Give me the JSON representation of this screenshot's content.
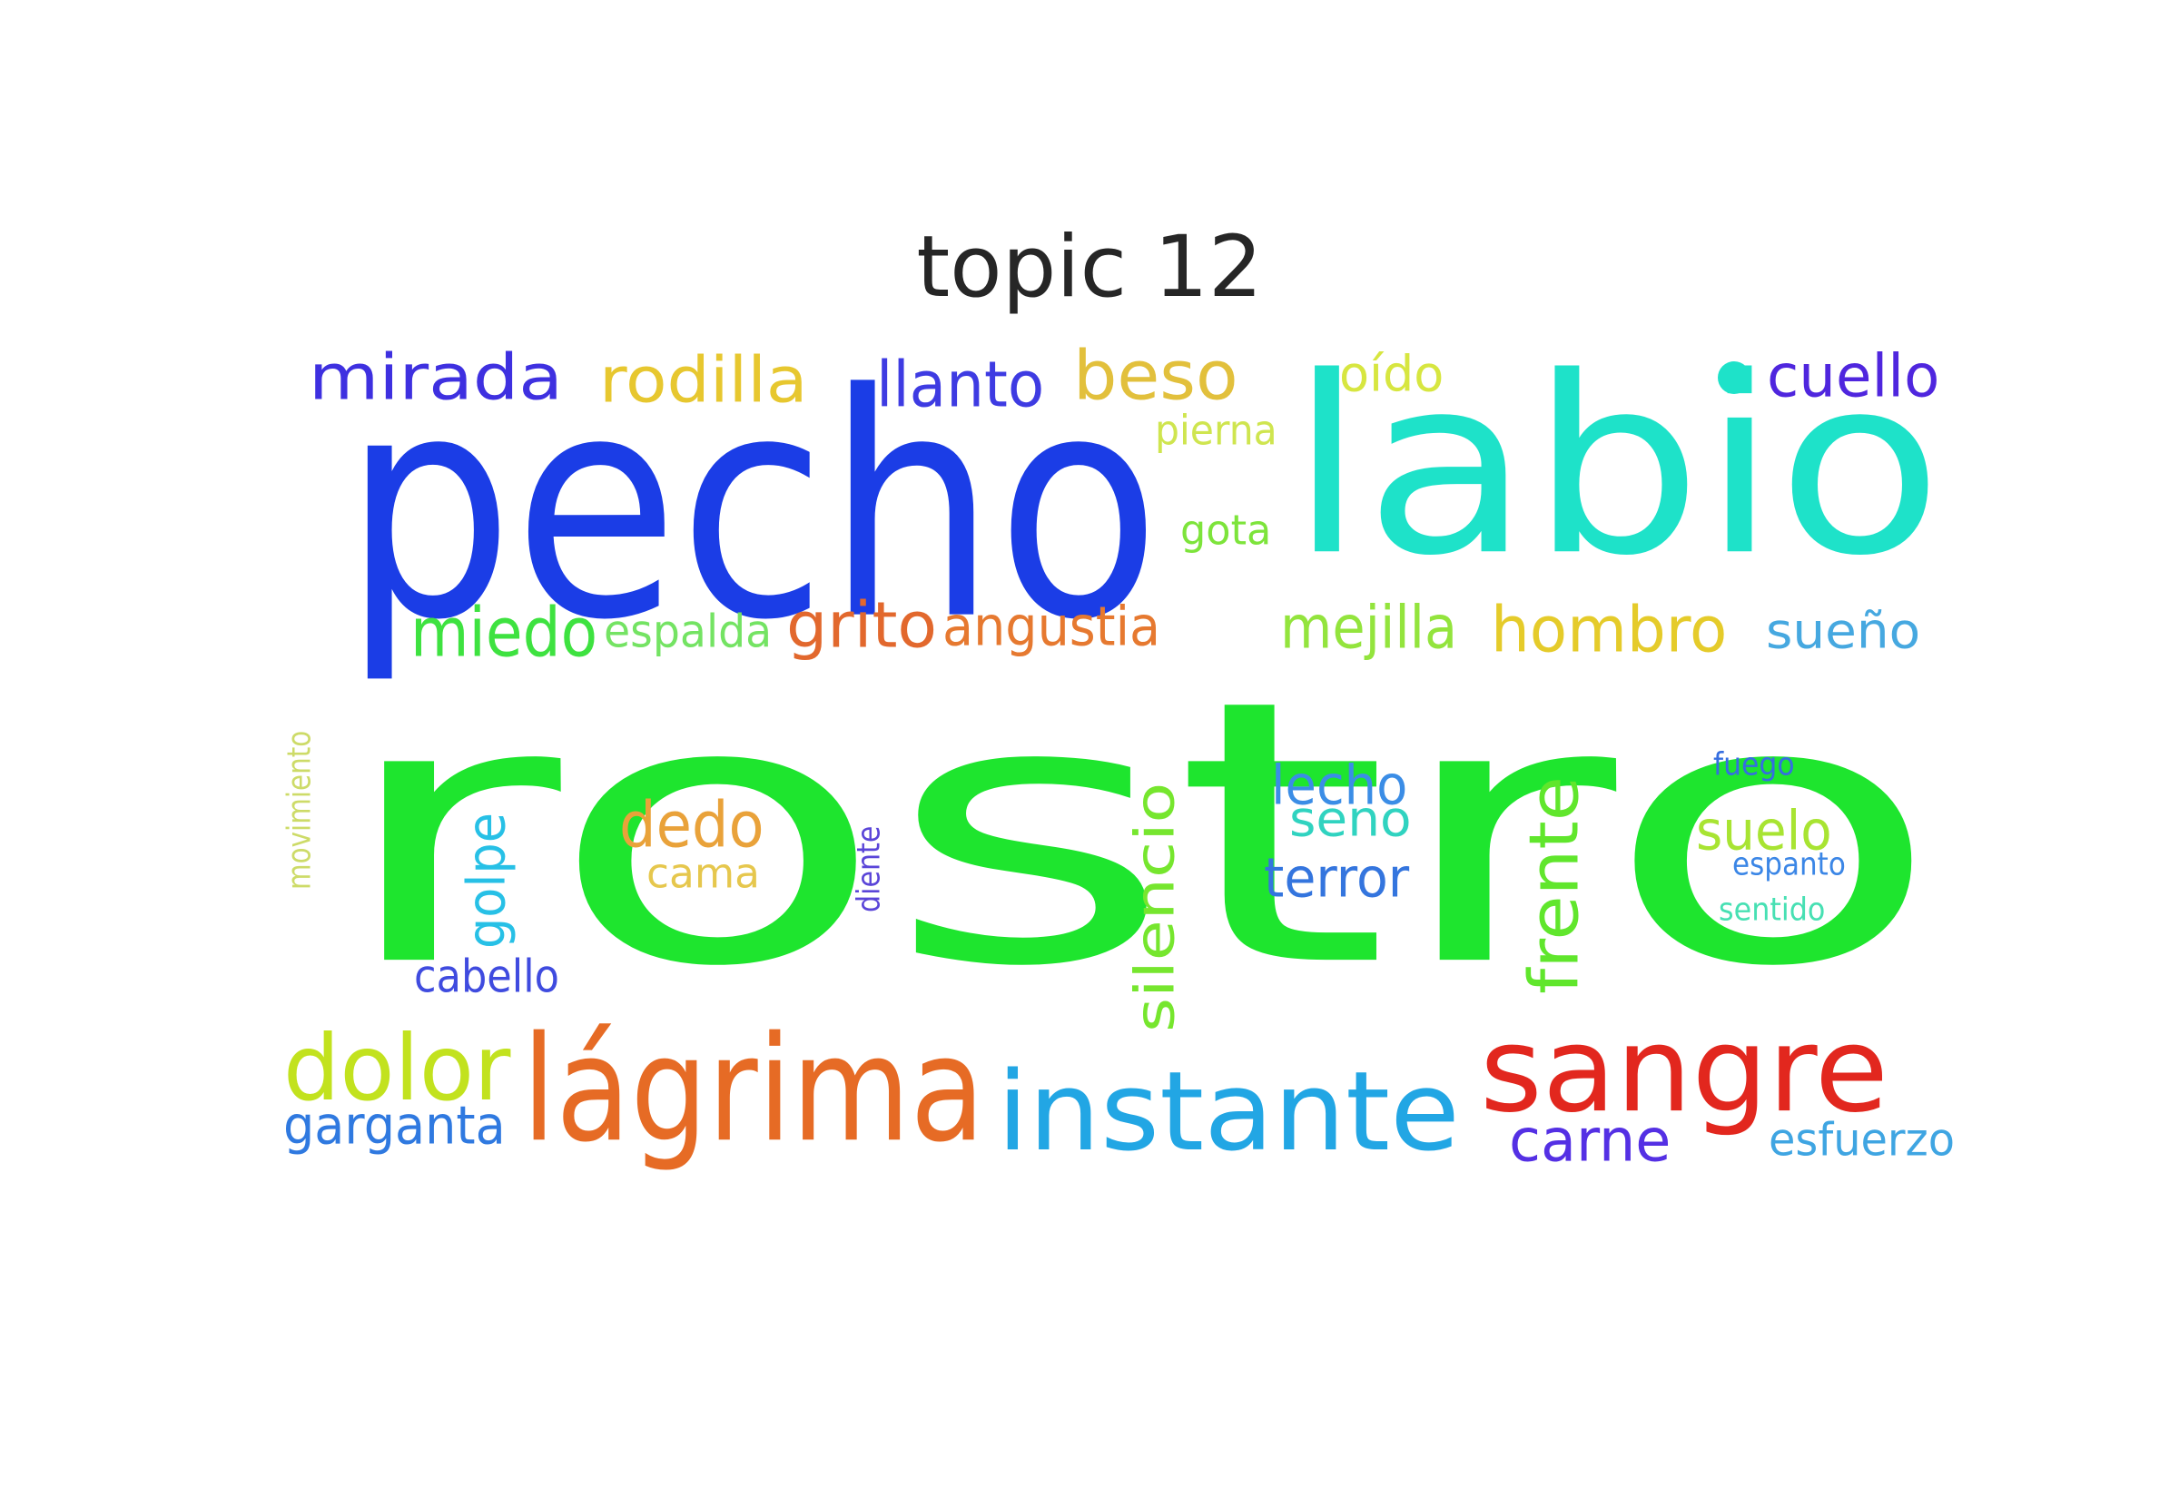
{
  "title": "topic 12",
  "words": [
    {
      "text": "rostro",
      "color": "#1ee52e"
    },
    {
      "text": "pecho",
      "color": "#1b3de6"
    },
    {
      "text": "labio",
      "color": "#1ee2c9"
    },
    {
      "text": "lágrima",
      "color": "#e66b25"
    },
    {
      "text": "instante",
      "color": "#22a6e4"
    },
    {
      "text": "sangre",
      "color": "#e2271e"
    },
    {
      "text": "dolor",
      "color": "#c2e21e"
    },
    {
      "text": "mirada",
      "color": "#3e30e0"
    },
    {
      "text": "rodilla",
      "color": "#e7c72f"
    },
    {
      "text": "llanto",
      "color": "#3e3be2"
    },
    {
      "text": "beso",
      "color": "#e2c03c"
    },
    {
      "text": "oído",
      "color": "#d7e640"
    },
    {
      "text": "cuello",
      "color": "#4f26de"
    },
    {
      "text": "pierna",
      "color": "#cfe54f"
    },
    {
      "text": "gota",
      "color": "#7de43b"
    },
    {
      "text": "miedo",
      "color": "#3ee240"
    },
    {
      "text": "espalda",
      "color": "#74e363"
    },
    {
      "text": "grito",
      "color": "#e2682d"
    },
    {
      "text": "angustia",
      "color": "#e67930"
    },
    {
      "text": "mejilla",
      "color": "#93e43d"
    },
    {
      "text": "hombro",
      "color": "#e5cb2a"
    },
    {
      "text": "sueño",
      "color": "#46a8e0"
    },
    {
      "text": "movimiento",
      "color": "#cddb68"
    },
    {
      "text": "golpe",
      "color": "#27c0e6"
    },
    {
      "text": "dedo",
      "color": "#e9a23a"
    },
    {
      "text": "cama",
      "color": "#e6c74d"
    },
    {
      "text": "diente",
      "color": "#5a45d8"
    },
    {
      "text": "silencio",
      "color": "#76e62e"
    },
    {
      "text": "lecho",
      "color": "#3b8de6"
    },
    {
      "text": "seno",
      "color": "#30d3c0"
    },
    {
      "text": "terror",
      "color": "#3475de"
    },
    {
      "text": "frente",
      "color": "#60e62c"
    },
    {
      "text": "fuego",
      "color": "#356ee0"
    },
    {
      "text": "suelo",
      "color": "#a8e432"
    },
    {
      "text": "espanto",
      "color": "#3b86e6"
    },
    {
      "text": "sentido",
      "color": "#47e0b3"
    },
    {
      "text": "cabello",
      "color": "#3f4bdf"
    },
    {
      "text": "garganta",
      "color": "#2f79e0"
    },
    {
      "text": "carne",
      "color": "#5430e4"
    },
    {
      "text": "esfuerzo",
      "color": "#3fa5e2"
    }
  ]
}
